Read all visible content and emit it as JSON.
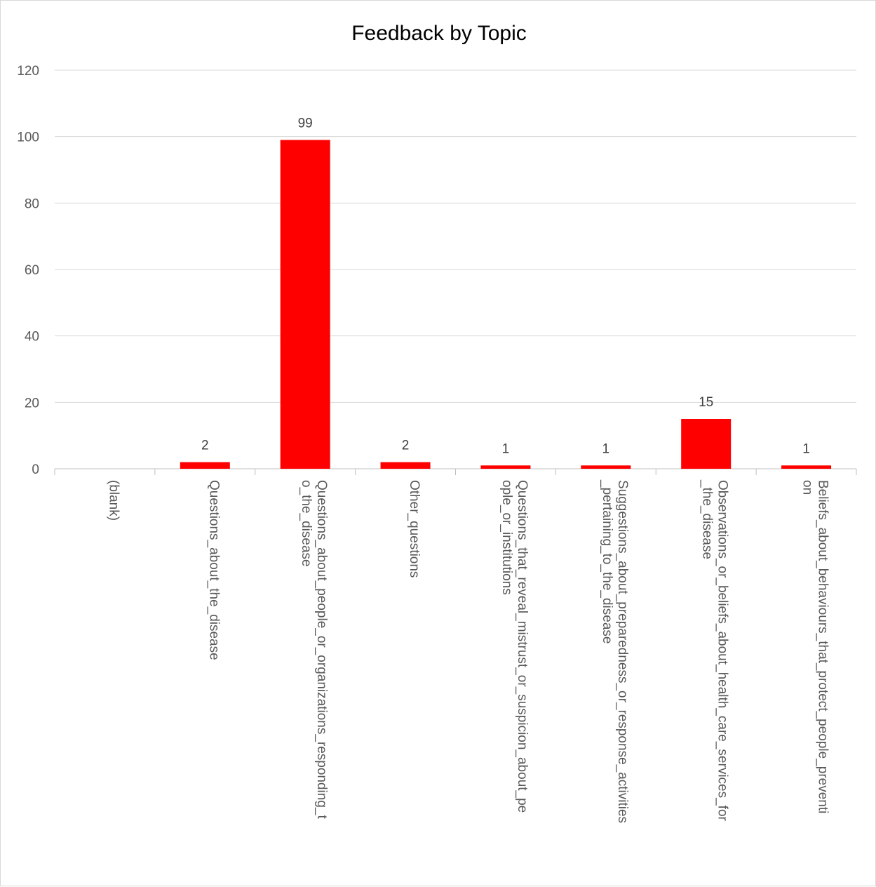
{
  "chart_data": {
    "type": "bar",
    "title": "Feedback by Topic",
    "xlabel": "",
    "ylabel": "",
    "ylim": [
      0,
      120
    ],
    "yticks": [
      "0",
      "20",
      "40",
      "60",
      "80",
      "100",
      "120"
    ],
    "grid": true,
    "bar_color": "#ff0000",
    "categories": [
      {
        "lines": [
          "(blank)"
        ]
      },
      {
        "lines": [
          "Questions_about_the_disease"
        ]
      },
      {
        "lines": [
          "Questions_about_people_or_organizations_responding_t",
          "o_the_disease"
        ]
      },
      {
        "lines": [
          "Other_questions"
        ]
      },
      {
        "lines": [
          "Questions_that_reveal_mistrust_or_suspicion_about_pe",
          "ople_or_institutions"
        ]
      },
      {
        "lines": [
          "Suggestions_about_preparedness_or_response_activities",
          "_pertaining_to_the_disease"
        ]
      },
      {
        "lines": [
          "Observations_or_beliefs_about_health_care_services_for",
          "_the_disease"
        ]
      },
      {
        "lines": [
          "Beliefs_about_behaviours_that_protect_people_preventi",
          "on"
        ]
      }
    ],
    "values": [
      null,
      2,
      99,
      2,
      1,
      1,
      15,
      1
    ],
    "data_labels": [
      "",
      "2",
      "99",
      "2",
      "1",
      "1",
      "15",
      "1"
    ]
  }
}
